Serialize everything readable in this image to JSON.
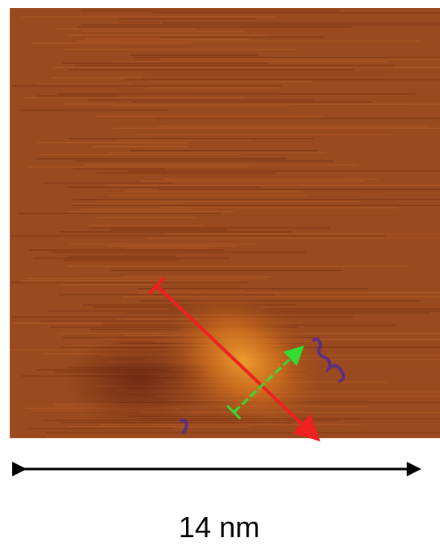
{
  "scale_bar": {
    "label": "14 nm"
  }
}
